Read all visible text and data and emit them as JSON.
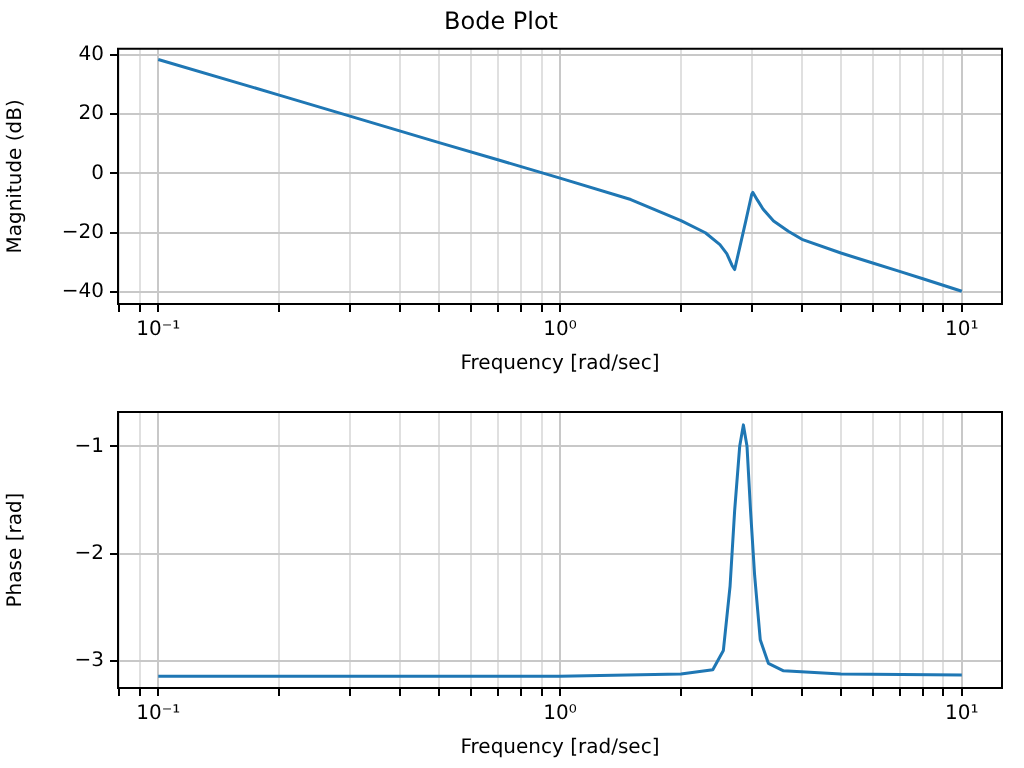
{
  "chart_data": [
    {
      "type": "line",
      "title": "Bode Plot",
      "xlabel": "Frequency [rad/sec]",
      "ylabel": "Magnitude (dB)",
      "color": "#1f77b4",
      "log": "x",
      "grid": true,
      "x": [
        0.1,
        0.2,
        0.3,
        0.5,
        0.7,
        1,
        1.5,
        2,
        2.3,
        2.5,
        2.6,
        2.68,
        2.72,
        2.8,
        2.9,
        3.0,
        3.02,
        3.1,
        3.2,
        3.4,
        3.7,
        4,
        5,
        6,
        7,
        8,
        10
      ],
      "values": [
        38.4,
        26.4,
        19.3,
        10.4,
        4.6,
        -1.6,
        -8.8,
        -15.9,
        -20,
        -24,
        -27,
        -31,
        -32.4,
        -25,
        -16,
        -7,
        -6.4,
        -9,
        -12,
        -16,
        -19.5,
        -22.2,
        -26.8,
        -30.2,
        -33,
        -35.5,
        -39.7
      ],
      "xlim": [
        0.0794,
        12.59
      ],
      "ylim": [
        -44,
        42
      ],
      "xticks": [
        {
          "value": 0.08,
          "label": null
        },
        {
          "value": 0.09,
          "label": null
        },
        {
          "value": 0.1,
          "label": "10⁻¹"
        },
        {
          "value": 0.2,
          "label": null
        },
        {
          "value": 0.3,
          "label": null
        },
        {
          "value": 0.4,
          "label": null
        },
        {
          "value": 0.5,
          "label": null
        },
        {
          "value": 0.6,
          "label": null
        },
        {
          "value": 0.7,
          "label": null
        },
        {
          "value": 0.8,
          "label": null
        },
        {
          "value": 0.9,
          "label": null
        },
        {
          "value": 1,
          "label": "10⁰"
        },
        {
          "value": 2,
          "label": null
        },
        {
          "value": 3,
          "label": null
        },
        {
          "value": 4,
          "label": null
        },
        {
          "value": 5,
          "label": null
        },
        {
          "value": 6,
          "label": null
        },
        {
          "value": 7,
          "label": null
        },
        {
          "value": 8,
          "label": null
        },
        {
          "value": 9,
          "label": null
        },
        {
          "value": 10,
          "label": "10¹"
        }
      ],
      "yticks": [
        -40,
        -20,
        0,
        20,
        40
      ]
    },
    {
      "type": "line",
      "xlabel": "Frequency [rad/sec]",
      "ylabel": "Phase [rad]",
      "color": "#1f77b4",
      "log": "x",
      "grid": true,
      "x": [
        0.1,
        0.3,
        1,
        2,
        2.4,
        2.55,
        2.65,
        2.72,
        2.8,
        2.86,
        2.92,
        2.98,
        3.05,
        3.15,
        3.3,
        3.6,
        5,
        10
      ],
      "values": [
        -3.14,
        -3.14,
        -3.14,
        -3.12,
        -3.08,
        -2.9,
        -2.3,
        -1.6,
        -1.0,
        -0.8,
        -1.0,
        -1.6,
        -2.2,
        -2.8,
        -3.02,
        -3.09,
        -3.12,
        -3.13
      ],
      "xlim": [
        0.0794,
        12.59
      ],
      "ylim": [
        -3.25,
        -0.68
      ],
      "xticks": [
        {
          "value": 0.08,
          "label": null
        },
        {
          "value": 0.09,
          "label": null
        },
        {
          "value": 0.1,
          "label": "10⁻¹"
        },
        {
          "value": 0.2,
          "label": null
        },
        {
          "value": 0.3,
          "label": null
        },
        {
          "value": 0.4,
          "label": null
        },
        {
          "value": 0.5,
          "label": null
        },
        {
          "value": 0.6,
          "label": null
        },
        {
          "value": 0.7,
          "label": null
        },
        {
          "value": 0.8,
          "label": null
        },
        {
          "value": 0.9,
          "label": null
        },
        {
          "value": 1,
          "label": "10⁰"
        },
        {
          "value": 2,
          "label": null
        },
        {
          "value": 3,
          "label": null
        },
        {
          "value": 4,
          "label": null
        },
        {
          "value": 5,
          "label": null
        },
        {
          "value": 6,
          "label": null
        },
        {
          "value": 7,
          "label": null
        },
        {
          "value": 8,
          "label": null
        },
        {
          "value": 9,
          "label": null
        },
        {
          "value": 10,
          "label": "10¹"
        }
      ],
      "yticks": [
        -3,
        -2,
        -1
      ]
    }
  ]
}
